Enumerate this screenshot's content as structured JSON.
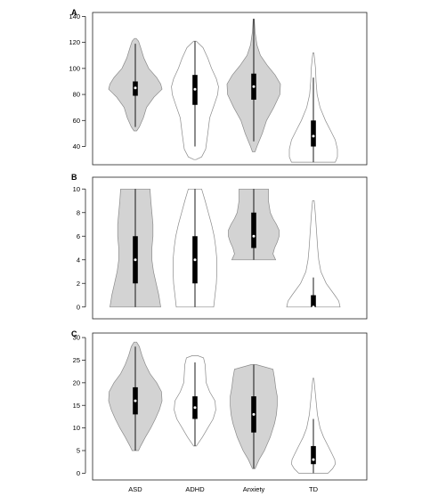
{
  "figure": {
    "x_categories": [
      "ASD",
      "ADHD",
      "Anxiety",
      "TD"
    ]
  },
  "chart_data": [
    {
      "panel": "A",
      "type": "violin",
      "categories": [
        "ASD",
        "ADHD",
        "Anxiety",
        "TD"
      ],
      "ylim": [
        26,
        143
      ],
      "yticks": [
        40,
        60,
        80,
        100,
        120,
        140
      ],
      "fill_colors": [
        "#d3d3d3",
        "#ffffff",
        "#d3d3d3",
        "#ffffff"
      ],
      "violins": [
        {
          "density": [
            [
              52,
              0.05
            ],
            [
              55,
              0.15
            ],
            [
              62,
              0.3
            ],
            [
              70,
              0.42
            ],
            [
              78,
              0.7
            ],
            [
              84,
              1.0
            ],
            [
              88,
              0.95
            ],
            [
              93,
              0.8
            ],
            [
              100,
              0.5
            ],
            [
              108,
              0.32
            ],
            [
              116,
              0.2
            ],
            [
              121,
              0.12
            ],
            [
              123,
              0.03
            ]
          ],
          "box": {
            "whisker_low": 55,
            "q1": 79,
            "median": 85,
            "q3": 90,
            "whisker_high": 119
          }
        },
        {
          "density": [
            [
              30,
              0.04
            ],
            [
              32,
              0.25
            ],
            [
              38,
              0.4
            ],
            [
              50,
              0.48
            ],
            [
              62,
              0.55
            ],
            [
              72,
              0.72
            ],
            [
              80,
              0.85
            ],
            [
              86,
              0.88
            ],
            [
              92,
              0.8
            ],
            [
              100,
              0.62
            ],
            [
              108,
              0.48
            ],
            [
              116,
              0.3
            ],
            [
              121,
              0.05
            ]
          ],
          "box": {
            "whisker_low": 40,
            "q1": 72,
            "median": 84,
            "q3": 95,
            "whisker_high": 121
          }
        },
        {
          "density": [
            [
              36,
              0.05
            ],
            [
              40,
              0.12
            ],
            [
              50,
              0.32
            ],
            [
              60,
              0.48
            ],
            [
              70,
              0.75
            ],
            [
              80,
              0.98
            ],
            [
              88,
              1.0
            ],
            [
              95,
              0.8
            ],
            [
              102,
              0.52
            ],
            [
              110,
              0.25
            ],
            [
              118,
              0.12
            ],
            [
              128,
              0.05
            ],
            [
              138,
              0.02
            ]
          ],
          "box": {
            "whisker_low": 44,
            "q1": 76,
            "median": 86,
            "q3": 96,
            "whisker_high": 138
          }
        },
        {
          "density": [
            [
              28,
              0.82
            ],
            [
              32,
              0.9
            ],
            [
              38,
              0.9
            ],
            [
              45,
              0.82
            ],
            [
              52,
              0.65
            ],
            [
              60,
              0.45
            ],
            [
              70,
              0.25
            ],
            [
              80,
              0.14
            ],
            [
              90,
              0.1
            ],
            [
              100,
              0.08
            ],
            [
              108,
              0.04
            ],
            [
              112,
              0.02
            ]
          ],
          "box": {
            "whisker_low": 28,
            "q1": 40,
            "median": 48,
            "q3": 60,
            "whisker_high": 93
          }
        }
      ]
    },
    {
      "panel": "B",
      "type": "violin",
      "categories": [
        "ASD",
        "ADHD",
        "Anxiety",
        "TD"
      ],
      "ylim": [
        -1,
        11
      ],
      "yticks": [
        0,
        2,
        4,
        6,
        8,
        10
      ],
      "fill_colors": [
        "#d3d3d3",
        "#ffffff",
        "#d3d3d3",
        "#ffffff"
      ],
      "violins": [
        {
          "density": [
            [
              0,
              0.95
            ],
            [
              1,
              0.88
            ],
            [
              2,
              0.78
            ],
            [
              3,
              0.68
            ],
            [
              4,
              0.62
            ],
            [
              5,
              0.62
            ],
            [
              6,
              0.66
            ],
            [
              7,
              0.66
            ],
            [
              8,
              0.62
            ],
            [
              9,
              0.58
            ],
            [
              10,
              0.55
            ]
          ],
          "box": {
            "whisker_low": 0,
            "q1": 2,
            "median": 4,
            "q3": 6,
            "whisker_high": 10
          }
        },
        {
          "density": [
            [
              0,
              0.7
            ],
            [
              1,
              0.75
            ],
            [
              2,
              0.8
            ],
            [
              3,
              0.82
            ],
            [
              4,
              0.82
            ],
            [
              5,
              0.78
            ],
            [
              6,
              0.72
            ],
            [
              7,
              0.62
            ],
            [
              8,
              0.5
            ],
            [
              9,
              0.38
            ],
            [
              10,
              0.25
            ]
          ],
          "box": {
            "whisker_low": 0,
            "q1": 2,
            "median": 4,
            "q3": 6,
            "whisker_high": 10
          }
        },
        {
          "density": [
            [
              4,
              0.82
            ],
            [
              4.5,
              0.72
            ],
            [
              5,
              0.78
            ],
            [
              5.5,
              0.88
            ],
            [
              6,
              0.95
            ],
            [
              6.5,
              0.95
            ],
            [
              7,
              0.85
            ],
            [
              7.5,
              0.72
            ],
            [
              8,
              0.62
            ],
            [
              9,
              0.55
            ],
            [
              10,
              0.55
            ]
          ],
          "box": {
            "whisker_low": 4,
            "q1": 5,
            "median": 6,
            "q3": 8,
            "whisker_high": 10
          }
        },
        {
          "density": [
            [
              0,
              1.0
            ],
            [
              0.5,
              0.95
            ],
            [
              1,
              0.8
            ],
            [
              2,
              0.48
            ],
            [
              3,
              0.28
            ],
            [
              4,
              0.2
            ],
            [
              5,
              0.16
            ],
            [
              6,
              0.13
            ],
            [
              7,
              0.1
            ],
            [
              8,
              0.07
            ],
            [
              9,
              0.03
            ]
          ],
          "box": {
            "whisker_low": 0,
            "q1": 0,
            "median": 0,
            "q3": 1,
            "whisker_high": 2.5
          }
        }
      ]
    },
    {
      "panel": "C",
      "type": "violin",
      "categories": [
        "ASD",
        "ADHD",
        "Anxiety",
        "TD"
      ],
      "ylim": [
        -1.5,
        31
      ],
      "yticks": [
        0,
        5,
        10,
        15,
        20,
        25,
        30
      ],
      "fill_colors": [
        "#d3d3d3",
        "#ffffff",
        "#d3d3d3",
        "#ffffff"
      ],
      "violins": [
        {
          "density": [
            [
              5,
              0.12
            ],
            [
              6,
              0.2
            ],
            [
              8,
              0.38
            ],
            [
              10,
              0.58
            ],
            [
              12,
              0.75
            ],
            [
              14,
              0.9
            ],
            [
              16,
              1.0
            ],
            [
              18,
              0.98
            ],
            [
              20,
              0.8
            ],
            [
              22,
              0.55
            ],
            [
              24,
              0.38
            ],
            [
              26,
              0.25
            ],
            [
              28,
              0.15
            ],
            [
              29,
              0.05
            ]
          ],
          "box": {
            "whisker_low": 5,
            "q1": 13,
            "median": 16,
            "q3": 19,
            "whisker_high": 28
          }
        },
        {
          "density": [
            [
              6,
              0.05
            ],
            [
              8,
              0.28
            ],
            [
              10,
              0.48
            ],
            [
              12,
              0.68
            ],
            [
              14,
              0.78
            ],
            [
              16,
              0.75
            ],
            [
              18,
              0.55
            ],
            [
              20,
              0.42
            ],
            [
              22,
              0.4
            ],
            [
              24,
              0.38
            ],
            [
              25.5,
              0.32
            ],
            [
              26,
              0.1
            ]
          ],
          "box": {
            "whisker_low": 6,
            "q1": 12,
            "median": 14.5,
            "q3": 17,
            "whisker_high": 24.5
          }
        },
        {
          "density": [
            [
              1,
              0.05
            ],
            [
              3,
              0.2
            ],
            [
              5,
              0.4
            ],
            [
              8,
              0.62
            ],
            [
              11,
              0.78
            ],
            [
              13,
              0.85
            ],
            [
              15,
              0.88
            ],
            [
              17,
              0.88
            ],
            [
              19,
              0.82
            ],
            [
              21,
              0.78
            ],
            [
              23,
              0.72
            ],
            [
              24,
              0.1
            ]
          ],
          "box": {
            "whisker_low": 1,
            "q1": 9,
            "median": 13,
            "q3": 17,
            "whisker_high": 24
          }
        },
        {
          "density": [
            [
              0,
              0.55
            ],
            [
              1,
              0.72
            ],
            [
              2,
              0.82
            ],
            [
              3,
              0.8
            ],
            [
              4,
              0.72
            ],
            [
              6,
              0.55
            ],
            [
              8,
              0.38
            ],
            [
              10,
              0.25
            ],
            [
              13,
              0.15
            ],
            [
              16,
              0.1
            ],
            [
              19,
              0.05
            ],
            [
              21,
              0.02
            ]
          ],
          "box": {
            "whisker_low": 0,
            "q1": 2,
            "median": 3,
            "q3": 6,
            "whisker_high": 12
          }
        }
      ]
    }
  ]
}
